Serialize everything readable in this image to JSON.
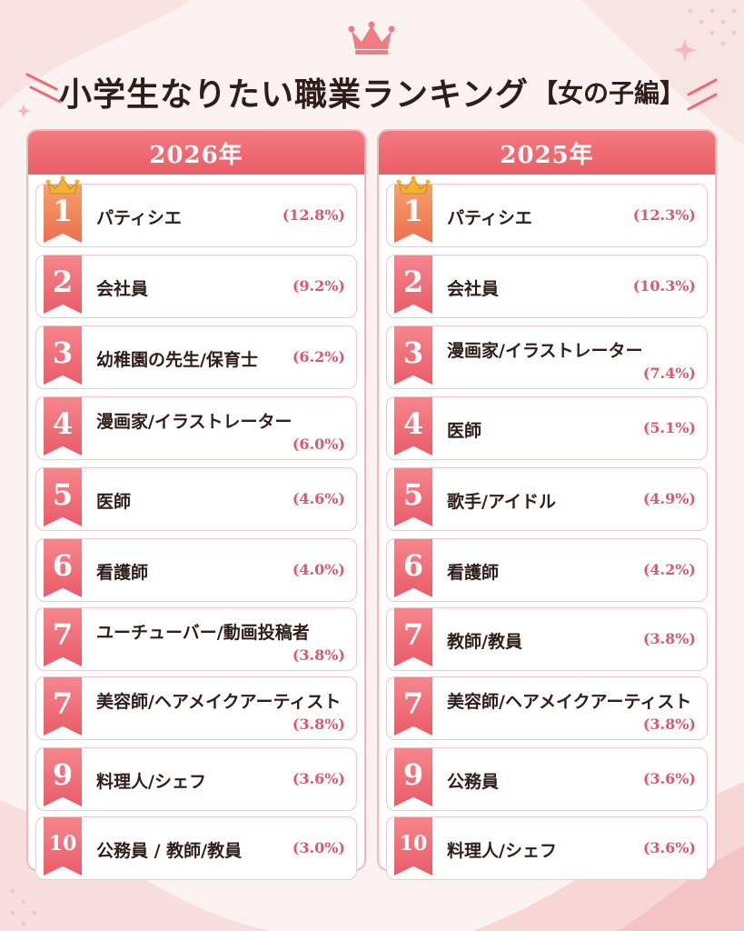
{
  "title": {
    "main": "小学生なりたい職業ランキング",
    "sub": "【女の子編】"
  },
  "colors": {
    "accent": "#ec5e6a",
    "gold": "#f0b332",
    "text": "#2f1d1a"
  },
  "columns": [
    {
      "year": "2026年",
      "rows": [
        {
          "rank": "1",
          "job": "パティシエ",
          "pct": "(12.8%)"
        },
        {
          "rank": "2",
          "job": "会社員",
          "pct": "(9.2%)"
        },
        {
          "rank": "3",
          "job": "幼稚園の先生/保育士",
          "pct": "(6.2%)"
        },
        {
          "rank": "4",
          "job": "漫画家/イラストレーター",
          "pct": "(6.0%)"
        },
        {
          "rank": "5",
          "job": "医師",
          "pct": "(4.6%)"
        },
        {
          "rank": "6",
          "job": "看護師",
          "pct": "(4.0%)"
        },
        {
          "rank": "7",
          "job": "ユーチューバー/動画投稿者",
          "pct": "(3.8%)"
        },
        {
          "rank": "7",
          "job": "美容師/ヘアメイクアーティスト",
          "pct": "(3.8%)"
        },
        {
          "rank": "9",
          "job": "料理人/シェフ",
          "pct": "(3.6%)"
        },
        {
          "rank": "10",
          "job": "公務員 / 教師/教員",
          "pct": "(3.0%)"
        }
      ]
    },
    {
      "year": "2025年",
      "rows": [
        {
          "rank": "1",
          "job": "パティシエ",
          "pct": "(12.3%)"
        },
        {
          "rank": "2",
          "job": "会社員",
          "pct": "(10.3%)"
        },
        {
          "rank": "3",
          "job": "漫画家/イラストレーター",
          "pct": "(7.4%)"
        },
        {
          "rank": "4",
          "job": "医師",
          "pct": "(5.1%)"
        },
        {
          "rank": "5",
          "job": "歌手/アイドル",
          "pct": "(4.9%)"
        },
        {
          "rank": "6",
          "job": "看護師",
          "pct": "(4.2%)"
        },
        {
          "rank": "7",
          "job": "教師/教員",
          "pct": "(3.8%)"
        },
        {
          "rank": "7",
          "job": "美容師/ヘアメイクアーティスト",
          "pct": "(3.8%)"
        },
        {
          "rank": "9",
          "job": "公務員",
          "pct": "(3.6%)"
        },
        {
          "rank": "10",
          "job": "料理人/シェフ",
          "pct": "(3.6%)"
        }
      ]
    }
  ]
}
